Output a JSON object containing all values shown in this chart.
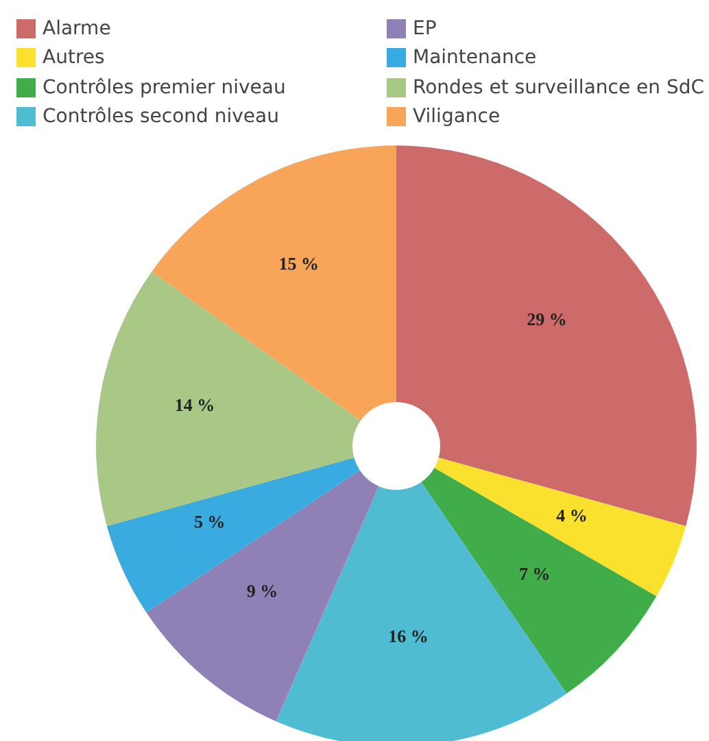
{
  "chart_data": {
    "type": "donut",
    "categories": [
      "Alarme",
      "Autres",
      "Contrôles premier niveau",
      "Contrôles second niveau",
      "EP",
      "Maintenance",
      "Rondes et surveillance en SdC",
      "Viligance"
    ],
    "values": [
      29,
      4,
      7,
      16,
      9,
      5,
      14,
      15
    ],
    "colors": [
      "#cd6b6b",
      "#f9e12e",
      "#40ad4a",
      "#4fbcd1",
      "#8f80b6",
      "#3aabe0",
      "#a9c886",
      "#f8a55a"
    ],
    "value_labels": [
      "29 %",
      "4 %",
      "7 %",
      "16 %",
      "9 %",
      "5 %",
      "14 %",
      "15 %"
    ],
    "legend": "top left"
  }
}
